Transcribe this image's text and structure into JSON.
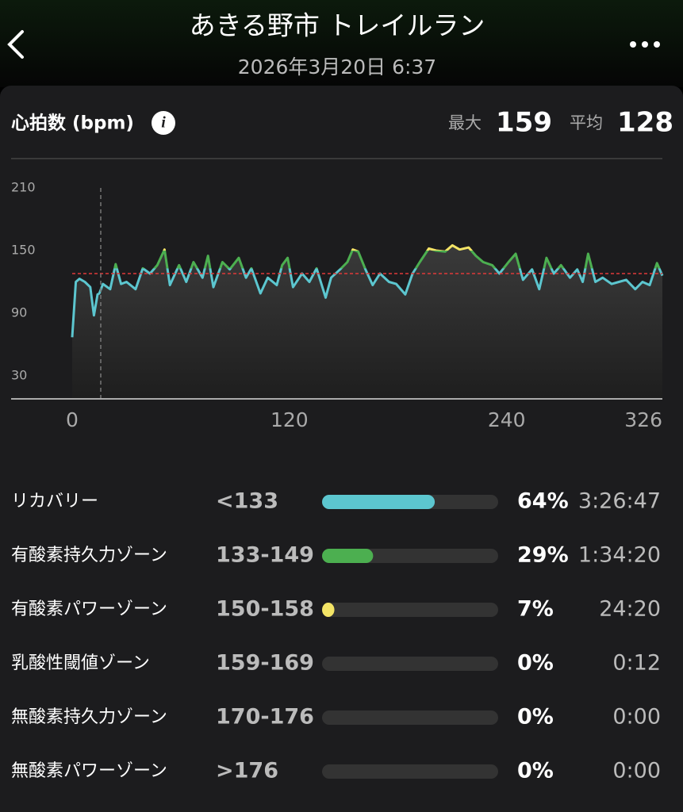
{
  "header": {
    "title": "あきる野市 トレイルラン",
    "date": "2026年3月20日 6:37"
  },
  "card": {
    "title": "心拍数 (bpm)",
    "max": {
      "label": "最大",
      "value": 159
    },
    "avg": {
      "label": "平均",
      "value": 128
    }
  },
  "chart_data": {
    "type": "line",
    "x": [
      0,
      2,
      4,
      7,
      10,
      12,
      14,
      15,
      17,
      21,
      24,
      27,
      30,
      35,
      39,
      43,
      47,
      51,
      54,
      59,
      63,
      67,
      72,
      75,
      78,
      83,
      87,
      92,
      96,
      99,
      104,
      108,
      113,
      116,
      119,
      122,
      127,
      131,
      135,
      140,
      143,
      148,
      152,
      155,
      158,
      162,
      166,
      170,
      175,
      179,
      184,
      188,
      192,
      197,
      201,
      206,
      210,
      214,
      219,
      223,
      227,
      232,
      236,
      241,
      245,
      249,
      254,
      258,
      262,
      266,
      270,
      275,
      279,
      282,
      285,
      289,
      293,
      298,
      302,
      306,
      311,
      315,
      319,
      323,
      326
    ],
    "values": [
      67,
      120,
      123,
      120,
      115,
      88,
      108,
      109,
      118,
      113,
      137,
      118,
      120,
      113,
      133,
      128,
      136,
      151,
      117,
      136,
      120,
      139,
      124,
      145,
      115,
      139,
      132,
      143,
      124,
      133,
      109,
      124,
      117,
      136,
      143,
      115,
      128,
      120,
      133,
      105,
      124,
      132,
      139,
      151,
      149,
      132,
      117,
      128,
      120,
      118,
      108,
      128,
      139,
      152,
      150,
      149,
      155,
      151,
      153,
      145,
      139,
      136,
      128,
      139,
      147,
      122,
      132,
      113,
      143,
      128,
      136,
      124,
      132,
      120,
      147,
      120,
      124,
      118,
      120,
      122,
      113,
      120,
      117,
      138,
      126
    ],
    "xlim": [
      0,
      326
    ],
    "ylim": [
      8,
      210
    ],
    "xticks": [
      0,
      120,
      240,
      326
    ],
    "yticks": [
      210,
      150,
      90,
      30
    ]
  },
  "zones": [
    {
      "name": "リカバリー",
      "range": "<133",
      "percent": 64,
      "percent_label": "64%",
      "time": "3:26:47",
      "color": "#5cc6cf"
    },
    {
      "name": "有酸素持久力ゾーン",
      "range": "133-149",
      "percent": 29,
      "percent_label": "29%",
      "time": "1:34:20",
      "color": "#4caf50"
    },
    {
      "name": "有酸素パワーゾーン",
      "range": "150-158",
      "percent": 7,
      "percent_label": "7%",
      "time": "24:20",
      "color": "#f3e466"
    },
    {
      "name": "乳酸性閾値ゾーン",
      "range": "159-169",
      "percent": 0,
      "percent_label": "0%",
      "time": "0:12",
      "color": "#f39c3c"
    },
    {
      "name": "無酸素持久力ゾーン",
      "range": "170-176",
      "percent": 0,
      "percent_label": "0%",
      "time": "0:00",
      "color": "#e0524a"
    },
    {
      "name": "無酸素パワーゾーン",
      "range": ">176",
      "percent": 0,
      "percent_label": "0%",
      "time": "0:00",
      "color": "#c03c8c"
    }
  ]
}
